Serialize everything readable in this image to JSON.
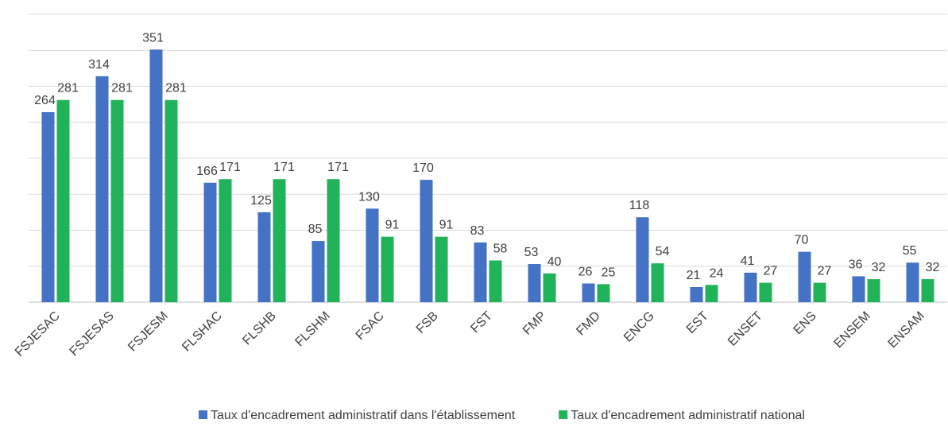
{
  "chart_data": {
    "type": "bar",
    "categories": [
      "FSJESAC",
      "FSJESAS",
      "FSJESM",
      "FLSHAC",
      "FLSHB",
      "FLSHM",
      "FSAC",
      "FSB",
      "FST",
      "FMP",
      "FMD",
      "ENCG",
      "EST",
      "ENSET",
      "ENS",
      "ENSEM",
      "ENSAM"
    ],
    "series": [
      {
        "name": "Taux d'encadrement administratif dans l'établissement",
        "color": "#4472c4",
        "values": [
          264,
          314,
          351,
          166,
          125,
          85,
          130,
          170,
          83,
          53,
          26,
          118,
          21,
          41,
          70,
          36,
          55
        ]
      },
      {
        "name": "Taux d'encadrement administratif national",
        "color": "#21b35a",
        "values": [
          281,
          281,
          281,
          171,
          171,
          171,
          91,
          91,
          58,
          40,
          25,
          54,
          24,
          27,
          27,
          32,
          32
        ]
      }
    ],
    "ylim": [
      0,
      400
    ],
    "yticks": [
      0,
      50,
      100,
      150,
      200,
      250,
      300,
      350,
      400
    ],
    "grid": true,
    "legend": "bottom"
  }
}
